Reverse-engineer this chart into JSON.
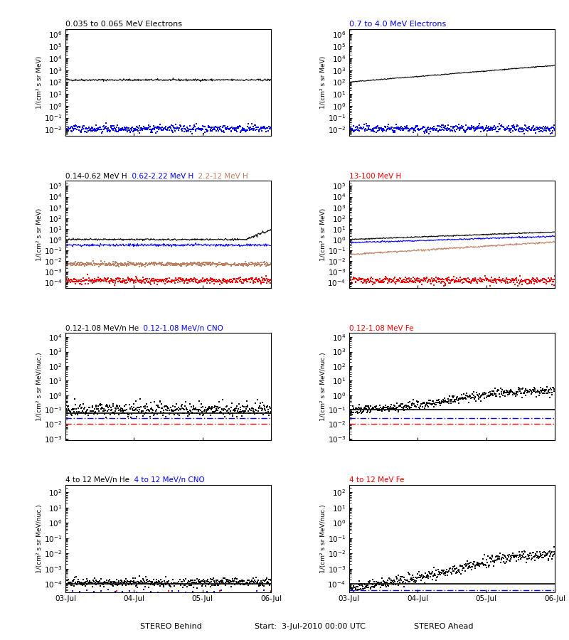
{
  "fig_width": 8.0,
  "fig_height": 9.0,
  "bg_color": "#ffffff",
  "ylabel_electrons": "1/(cm² s sr MeV)",
  "ylabel_ions": "1/(cm² s sr MeV/nuc.)",
  "xlabel_left": "STEREO Behind",
  "xlabel_right": "STEREO Ahead",
  "xlabel_center": "Start:  3-Jul-2010 00:00 UTC",
  "xtick_labels": [
    "03-Jul",
    "04-Jul",
    "05-Jul",
    "06-Jul"
  ],
  "panels": {
    "r0l": {
      "ylim": [
        0.003,
        3000000.0
      ],
      "yticks": [
        0.01,
        1.0,
        100.0,
        10000.0,
        1000000.0
      ]
    },
    "r0r": {
      "ylim": [
        0.003,
        3000000.0
      ],
      "yticks": [
        0.01,
        1.0,
        100.0,
        10000.0,
        1000000.0
      ]
    },
    "r1l": {
      "ylim": [
        3e-05,
        300000.0
      ],
      "yticks": [
        0.0001,
        0.01,
        1.0,
        100.0,
        10000.0
      ]
    },
    "r1r": {
      "ylim": [
        3e-05,
        300000.0
      ],
      "yticks": [
        0.0001,
        0.01,
        1.0,
        100.0,
        10000.0
      ]
    },
    "r2l": {
      "ylim": [
        0.0008,
        20000.0
      ],
      "yticks": [
        0.001,
        0.1,
        10.0,
        1000.0
      ]
    },
    "r2r": {
      "ylim": [
        0.0008,
        20000.0
      ],
      "yticks": [
        0.001,
        0.1,
        10.0,
        1000.0
      ]
    },
    "r3l": {
      "ylim": [
        3e-05,
        300.0
      ],
      "yticks": [
        0.0001,
        0.01,
        1.0,
        100.0
      ]
    },
    "r3r": {
      "ylim": [
        3e-05,
        300.0
      ],
      "yticks": [
        0.0001,
        0.01,
        1.0,
        100.0
      ]
    }
  },
  "titles": {
    "r0l": [
      [
        "0.035 to 0.065 MeV Electrons",
        "#000000"
      ]
    ],
    "r0r": [
      [
        "0.7 to 4.0 MeV Electrons",
        "#0000ff"
      ]
    ],
    "r1l": [
      [
        "0.14-0.62 MeV H",
        "#000000"
      ],
      [
        "  0.62-2.22 MeV H",
        "#0000ff"
      ],
      [
        "  2.2-12 MeV H",
        "#c08060"
      ],
      [
        "  13-100 MeV H",
        "#ff0000"
      ]
    ],
    "r1r": [],
    "r2l": [
      [
        "0.12-1.08 MeV/n He",
        "#000000"
      ],
      [
        "  0.12-1.08 MeV/n CNO",
        "#0000ff"
      ],
      [
        "  0.12-1.08 MeV Fe",
        "#ff0000"
      ]
    ],
    "r2r": [],
    "r3l": [
      [
        "4 to 12 MeV/n He",
        "#000000"
      ],
      [
        "  4 to 12 MeV/n CNO",
        "#0000ff"
      ],
      [
        "  4 to 12 MeV Fe",
        "#ff0000"
      ]
    ],
    "r3r": []
  }
}
